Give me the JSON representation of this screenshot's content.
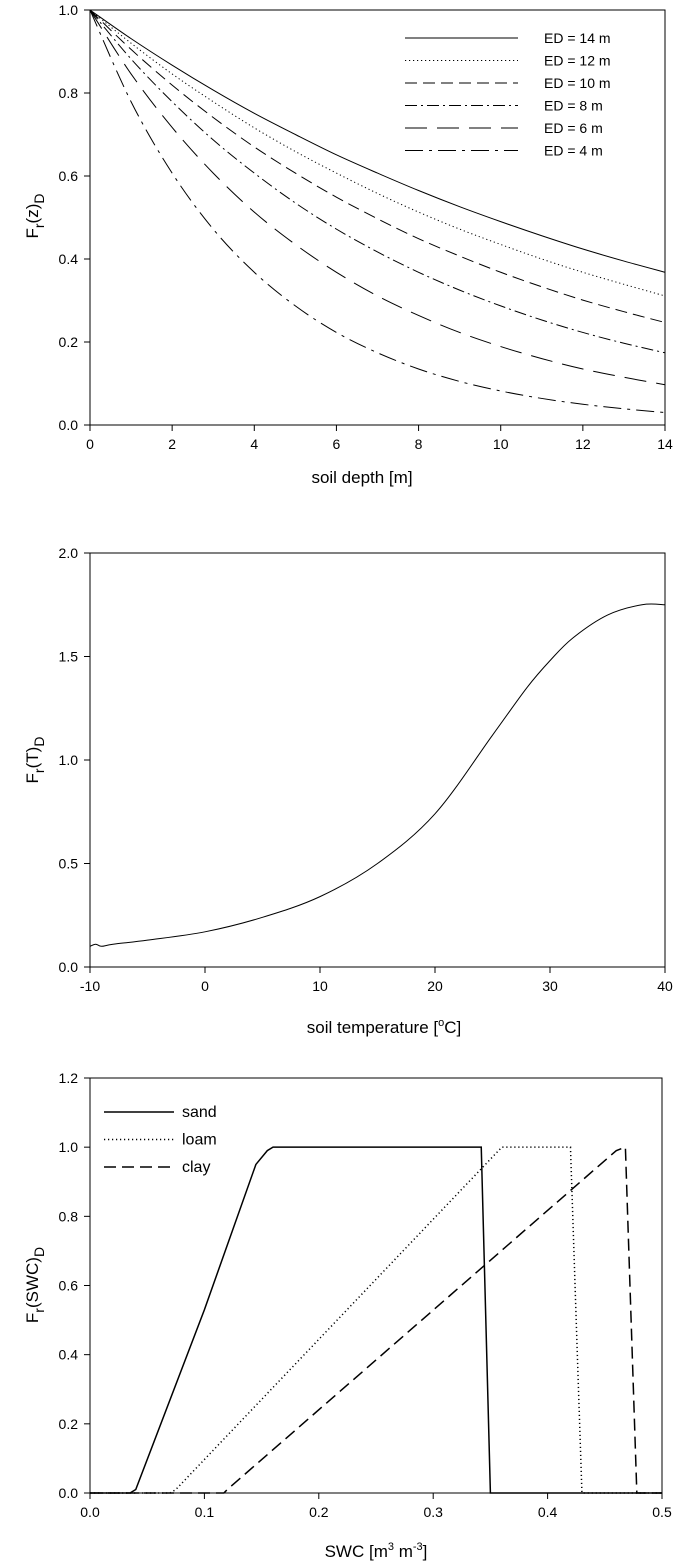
{
  "chart_data": [
    {
      "type": "line",
      "title": "",
      "xlabel": "soil depth [m]",
      "ylabel_main": "F",
      "ylabel_sub1": "r",
      "ylabel_mid": "(z)",
      "ylabel_sub2": "D",
      "xlim": [
        0,
        14
      ],
      "ylim": [
        0,
        1
      ],
      "xticks": [
        "0",
        "2",
        "4",
        "6",
        "8",
        "10",
        "12",
        "14"
      ],
      "yticks": [
        "0.0",
        "0.2",
        "0.4",
        "0.6",
        "0.8",
        "1.0"
      ],
      "grid": false,
      "legend_position": "top-right",
      "x": [
        0,
        1,
        2,
        3,
        4,
        5,
        6,
        7,
        8,
        9,
        10,
        11,
        12,
        13,
        14
      ],
      "series": [
        {
          "name": "ED = 14 m",
          "dash": "solid",
          "values": [
            1.0,
            0.931,
            0.867,
            0.807,
            0.751,
            0.7,
            0.651,
            0.607,
            0.565,
            0.526,
            0.49,
            0.456,
            0.424,
            0.395,
            0.368
          ]
        },
        {
          "name": "ED = 12 m",
          "dash": "dotted",
          "values": [
            1.0,
            0.92,
            0.846,
            0.779,
            0.716,
            0.659,
            0.607,
            0.558,
            0.513,
            0.472,
            0.435,
            0.4,
            0.368,
            0.339,
            0.311
          ]
        },
        {
          "name": "ED = 10 m",
          "dash": "dashed",
          "values": [
            1.0,
            0.905,
            0.819,
            0.741,
            0.67,
            0.607,
            0.549,
            0.497,
            0.449,
            0.407,
            0.368,
            0.333,
            0.301,
            0.273,
            0.247
          ]
        },
        {
          "name": "ED = 8 m",
          "dash": "dashdot",
          "values": [
            1.0,
            0.882,
            0.779,
            0.687,
            0.607,
            0.535,
            0.472,
            0.417,
            0.368,
            0.325,
            0.287,
            0.253,
            0.223,
            0.197,
            0.174
          ]
        },
        {
          "name": "ED = 6 m",
          "dash": "longdash",
          "values": [
            1.0,
            0.846,
            0.717,
            0.607,
            0.513,
            0.435,
            0.368,
            0.311,
            0.264,
            0.223,
            0.189,
            0.16,
            0.135,
            0.115,
            0.097
          ]
        },
        {
          "name": "ED = 4 m",
          "dash": "longdashdot",
          "values": [
            1.0,
            0.779,
            0.607,
            0.472,
            0.368,
            0.287,
            0.223,
            0.174,
            0.135,
            0.105,
            0.082,
            0.064,
            0.05,
            0.039,
            0.03
          ]
        }
      ]
    },
    {
      "type": "line",
      "title": "",
      "xlabel_main": "soil temperature [",
      "xlabel_sup": "o",
      "xlabel_tail": "C]",
      "ylabel_main": "F",
      "ylabel_sub1": "r",
      "ylabel_mid": "(T)",
      "ylabel_sub2": "D",
      "xlim": [
        -10,
        40
      ],
      "ylim": [
        0,
        2
      ],
      "xticks": [
        "-10",
        "0",
        "10",
        "20",
        "30",
        "40"
      ],
      "yticks": [
        "0.0",
        "0.5",
        "1.0",
        "1.5",
        "2.0"
      ],
      "grid": false,
      "x": [
        -10,
        -9.5,
        -9,
        -8,
        -5,
        0,
        5,
        10,
        15,
        20,
        25,
        28,
        30,
        32,
        35,
        38,
        40
      ],
      "series": [
        {
          "dash": "solid",
          "values": [
            0.1,
            0.11,
            0.1,
            0.11,
            0.13,
            0.17,
            0.24,
            0.34,
            0.5,
            0.74,
            1.12,
            1.35,
            1.48,
            1.59,
            1.7,
            1.75,
            1.75
          ]
        }
      ]
    },
    {
      "type": "line",
      "title": "",
      "xlabel_main": "SWC [m",
      "xlabel_sup1": "3",
      "xlabel_mid": " m",
      "xlabel_sup2": "-3",
      "xlabel_tail": "]",
      "ylabel_main": "F",
      "ylabel_sub1": "r",
      "ylabel_mid": "(SWC)",
      "ylabel_sub2": "D",
      "xlim": [
        0,
        0.5
      ],
      "ylim": [
        0,
        1.2
      ],
      "xticks": [
        "0.0",
        "0.1",
        "0.2",
        "0.3",
        "0.4",
        "0.5"
      ],
      "yticks": [
        "0.0",
        "0.2",
        "0.4",
        "0.6",
        "0.8",
        "1.0",
        "1.2"
      ],
      "grid": false,
      "legend_position": "top-left",
      "series": [
        {
          "name": "sand",
          "dash": "solid",
          "x": [
            0,
            0.035,
            0.04,
            0.1,
            0.145,
            0.155,
            0.16,
            0.342,
            0.35,
            0.5
          ],
          "values": [
            0,
            0,
            0.01,
            0.53,
            0.95,
            0.99,
            1.0,
            1.0,
            0,
            0
          ]
        },
        {
          "name": "loam",
          "dash": "dotted",
          "x": [
            0,
            0.07,
            0.075,
            0.36,
            0.42,
            0.43,
            0.5
          ],
          "values": [
            0,
            0,
            0.01,
            1.0,
            1.0,
            0,
            0
          ]
        },
        {
          "name": "clay",
          "dash": "dashed",
          "x": [
            0,
            0.117,
            0.12,
            0.46,
            0.468,
            0.478,
            0.5
          ],
          "values": [
            0,
            0,
            0.01,
            0.99,
            1.0,
            0,
            0
          ]
        }
      ]
    }
  ]
}
